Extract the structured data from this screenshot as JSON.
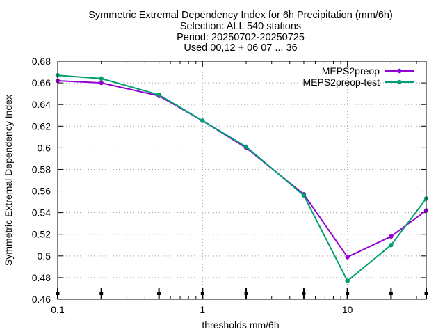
{
  "chart_data": {
    "type": "line",
    "title": [
      "Symmetric Extremal Dependency Index  for 6h Precipitation (mm/6h)",
      "Selection: ALL    540 stations",
      "Period: 20250702-20250725",
      "Used 00,12 + 06 07 ... 36"
    ],
    "xlabel": "thresholds mm/6h",
    "ylabel": "Symmetric Extremal Dependency Index",
    "x_scale": "log",
    "xlim": [
      0.1,
      35
    ],
    "ylim": [
      0.46,
      0.68
    ],
    "x_ticks": [
      {
        "value": 0.1,
        "label": "0.1"
      },
      {
        "value": 1,
        "label": "1"
      },
      {
        "value": 10,
        "label": "10"
      }
    ],
    "y_ticks": [
      {
        "value": 0.46,
        "label": "0.46"
      },
      {
        "value": 0.48,
        "label": "0.48"
      },
      {
        "value": 0.5,
        "label": "0.5"
      },
      {
        "value": 0.52,
        "label": "0.52"
      },
      {
        "value": 0.54,
        "label": "0.54"
      },
      {
        "value": 0.56,
        "label": "0.56"
      },
      {
        "value": 0.58,
        "label": "0.58"
      },
      {
        "value": 0.6,
        "label": "0.6"
      },
      {
        "value": 0.62,
        "label": "0.62"
      },
      {
        "value": 0.64,
        "label": "0.64"
      },
      {
        "value": 0.66,
        "label": "0.66"
      },
      {
        "value": 0.68,
        "label": "0.68"
      }
    ],
    "grid": true,
    "legend_position": "top-right",
    "x": [
      0.1,
      0.2,
      0.5,
      1,
      2,
      5,
      10,
      20,
      35
    ],
    "series": [
      {
        "name": "MEPS2preop",
        "color": "#9400d3",
        "values": [
          0.662,
          0.66,
          0.648,
          0.625,
          0.6,
          0.557,
          0.499,
          0.518,
          0.542
        ]
      },
      {
        "name": "MEPS2preop-test",
        "color": "#009e73",
        "values": [
          0.667,
          0.664,
          0.649,
          0.625,
          0.601,
          0.556,
          0.477,
          0.51,
          0.553
        ]
      }
    ],
    "bottom_markers_x": [
      0.1,
      0.2,
      0.5,
      1,
      2,
      5,
      10,
      20,
      35
    ]
  }
}
